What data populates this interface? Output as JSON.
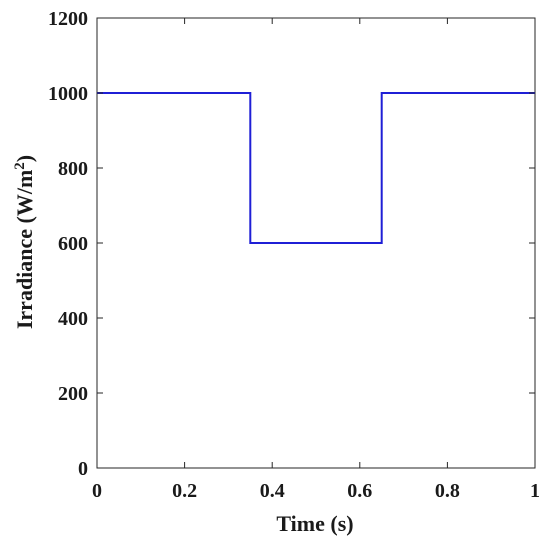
{
  "chart_data": {
    "type": "line",
    "xlabel": "Time (s)",
    "ylabel": {
      "base": "Irradiance (W/m",
      "superscript": "2",
      "close": ")"
    },
    "xlim": [
      0,
      1
    ],
    "ylim": [
      0,
      1200
    ],
    "xticks": [
      0,
      0.2,
      0.4,
      0.6,
      0.8,
      1
    ],
    "xtick_labels": [
      "0",
      "0.2",
      "0.4",
      "0.6",
      "0.8",
      "1"
    ],
    "yticks": [
      0,
      200,
      400,
      600,
      800,
      1000,
      1200
    ],
    "ytick_labels": [
      "0",
      "200",
      "400",
      "600",
      "800",
      "1000",
      "1200"
    ],
    "grid": false,
    "series": [
      {
        "color": "#1f1fd6",
        "x": [
          0,
          0.35,
          0.35,
          0.65,
          0.65,
          1
        ],
        "y": [
          1000,
          1000,
          600,
          600,
          1000,
          1000
        ]
      }
    ]
  }
}
